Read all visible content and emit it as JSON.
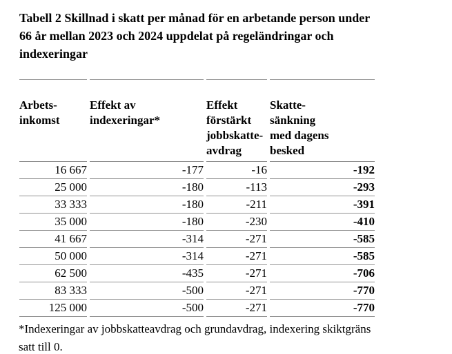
{
  "document": {
    "title": "Tabell 2 Skillnad i skatt per månad för en arbetande person under\n66 år mellan 2023 och 2024 uppdelat på regeländringar och\nindexeringar",
    "footnote": "*Indexeringar av jobbskatteavdrag och grundavdrag, indexering skiktgräns\nsatt till 0."
  },
  "table": {
    "headers": [
      "Arbets-\ninkomst",
      "Effekt av\nindexeringar*",
      "Effekt\nförstärkt\njobbskatte-\navdrag",
      "Skatte-\nsänkning\nmed dagens\nbesked"
    ],
    "rows": [
      [
        "16 667",
        "-177",
        "-16",
        "-192"
      ],
      [
        "25 000",
        "-180",
        "-113",
        "-293"
      ],
      [
        "33 333",
        "-180",
        "-211",
        "-391"
      ],
      [
        "35 000",
        "-180",
        "-230",
        "-410"
      ],
      [
        "41 667",
        "-314",
        "-271",
        "-585"
      ],
      [
        "50 000",
        "-314",
        "-271",
        "-585"
      ],
      [
        "62 500",
        "-435",
        "-271",
        "-706"
      ],
      [
        "83 333",
        "-500",
        "-271",
        "-770"
      ],
      [
        "125 000",
        "-500",
        "-271",
        "-770"
      ]
    ]
  },
  "colors": {
    "text": "#000000",
    "rule": "#9a9a9a",
    "background": "#ffffff"
  }
}
